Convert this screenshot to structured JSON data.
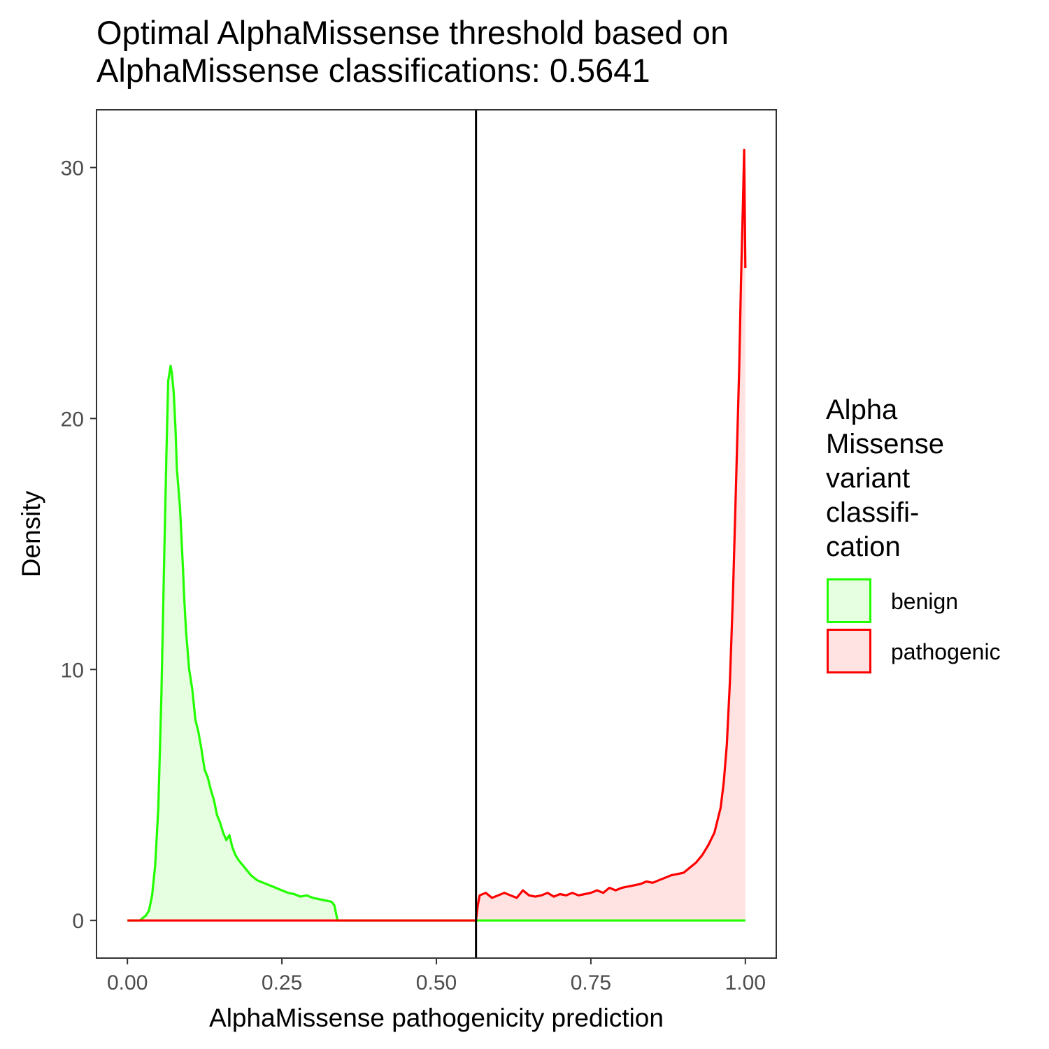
{
  "chart_data": {
    "type": "area",
    "title": "Optimal AlphaMissense threshold based on\nAlphaMissense classifications: 0.5641",
    "xlabel": "AlphaMissense pathogenicity prediction",
    "ylabel": "Density",
    "xlim": [
      -0.05,
      1.05
    ],
    "ylim": [
      -1.5,
      32.3
    ],
    "x_ticks": [
      0,
      0.25,
      0.5,
      0.75,
      1.0
    ],
    "x_tick_labels": [
      "0.00",
      "0.25",
      "0.50",
      "0.75",
      "1.00"
    ],
    "y_ticks": [
      0,
      10,
      20,
      30
    ],
    "y_tick_labels": [
      "0",
      "10",
      "20",
      "30"
    ],
    "threshold": 0.5641,
    "legend": {
      "title": "Alpha\nMissense\nvariant\nclassifi-\ncation",
      "position": "right"
    },
    "series": [
      {
        "name": "benign",
        "color": "#22ff00",
        "fill": "#e5ffe0",
        "x": [
          0.0,
          0.02,
          0.03,
          0.035,
          0.04,
          0.045,
          0.05,
          0.055,
          0.06,
          0.063,
          0.066,
          0.07,
          0.072,
          0.075,
          0.078,
          0.08,
          0.085,
          0.09,
          0.092,
          0.095,
          0.1,
          0.105,
          0.11,
          0.115,
          0.12,
          0.125,
          0.13,
          0.135,
          0.14,
          0.145,
          0.15,
          0.155,
          0.16,
          0.165,
          0.17,
          0.175,
          0.18,
          0.19,
          0.2,
          0.21,
          0.22,
          0.23,
          0.24,
          0.25,
          0.26,
          0.27,
          0.28,
          0.29,
          0.3,
          0.31,
          0.32,
          0.33,
          0.335,
          0.34,
          0.345,
          0.56,
          0.6,
          0.7,
          0.8,
          0.9,
          1.0
        ],
        "y": [
          0,
          0,
          0.2,
          0.4,
          1.0,
          2.2,
          4.5,
          9.0,
          15.0,
          18.5,
          21.5,
          22.1,
          21.8,
          21.0,
          19.5,
          18.0,
          16.5,
          14.0,
          12.8,
          11.5,
          10.0,
          9.2,
          8.0,
          7.5,
          6.8,
          6.0,
          5.7,
          5.2,
          4.8,
          4.2,
          3.9,
          3.5,
          3.2,
          3.4,
          2.9,
          2.6,
          2.4,
          2.1,
          1.8,
          1.6,
          1.5,
          1.4,
          1.3,
          1.2,
          1.1,
          1.05,
          0.95,
          1.0,
          0.9,
          0.85,
          0.8,
          0.75,
          0.6,
          0.0,
          0,
          0,
          0,
          0,
          0,
          0,
          0
        ]
      },
      {
        "name": "pathogenic",
        "color": "#ff0000",
        "fill": "#ffe2e2",
        "x": [
          0.0,
          0.55,
          0.5641,
          0.567,
          0.57,
          0.58,
          0.59,
          0.6,
          0.61,
          0.62,
          0.63,
          0.64,
          0.65,
          0.66,
          0.67,
          0.68,
          0.69,
          0.7,
          0.71,
          0.72,
          0.73,
          0.74,
          0.75,
          0.76,
          0.77,
          0.78,
          0.79,
          0.8,
          0.81,
          0.82,
          0.83,
          0.84,
          0.85,
          0.86,
          0.87,
          0.88,
          0.89,
          0.9,
          0.91,
          0.92,
          0.93,
          0.94,
          0.95,
          0.96,
          0.965,
          0.97,
          0.975,
          0.98,
          0.985,
          0.99,
          0.993,
          0.996,
          0.998,
          1.0
        ],
        "y": [
          0,
          0,
          0,
          0.6,
          1.0,
          1.1,
          0.9,
          1.0,
          1.1,
          1.0,
          0.9,
          1.2,
          1.0,
          0.95,
          1.0,
          1.1,
          0.95,
          1.05,
          1.0,
          1.1,
          1.0,
          1.05,
          1.1,
          1.2,
          1.1,
          1.3,
          1.2,
          1.3,
          1.35,
          1.4,
          1.45,
          1.55,
          1.5,
          1.6,
          1.7,
          1.8,
          1.85,
          1.9,
          2.1,
          2.3,
          2.6,
          3.0,
          3.5,
          4.5,
          5.5,
          7.0,
          9.5,
          13.0,
          17.5,
          22.0,
          25.5,
          28.5,
          30.7,
          26.0
        ]
      }
    ]
  }
}
